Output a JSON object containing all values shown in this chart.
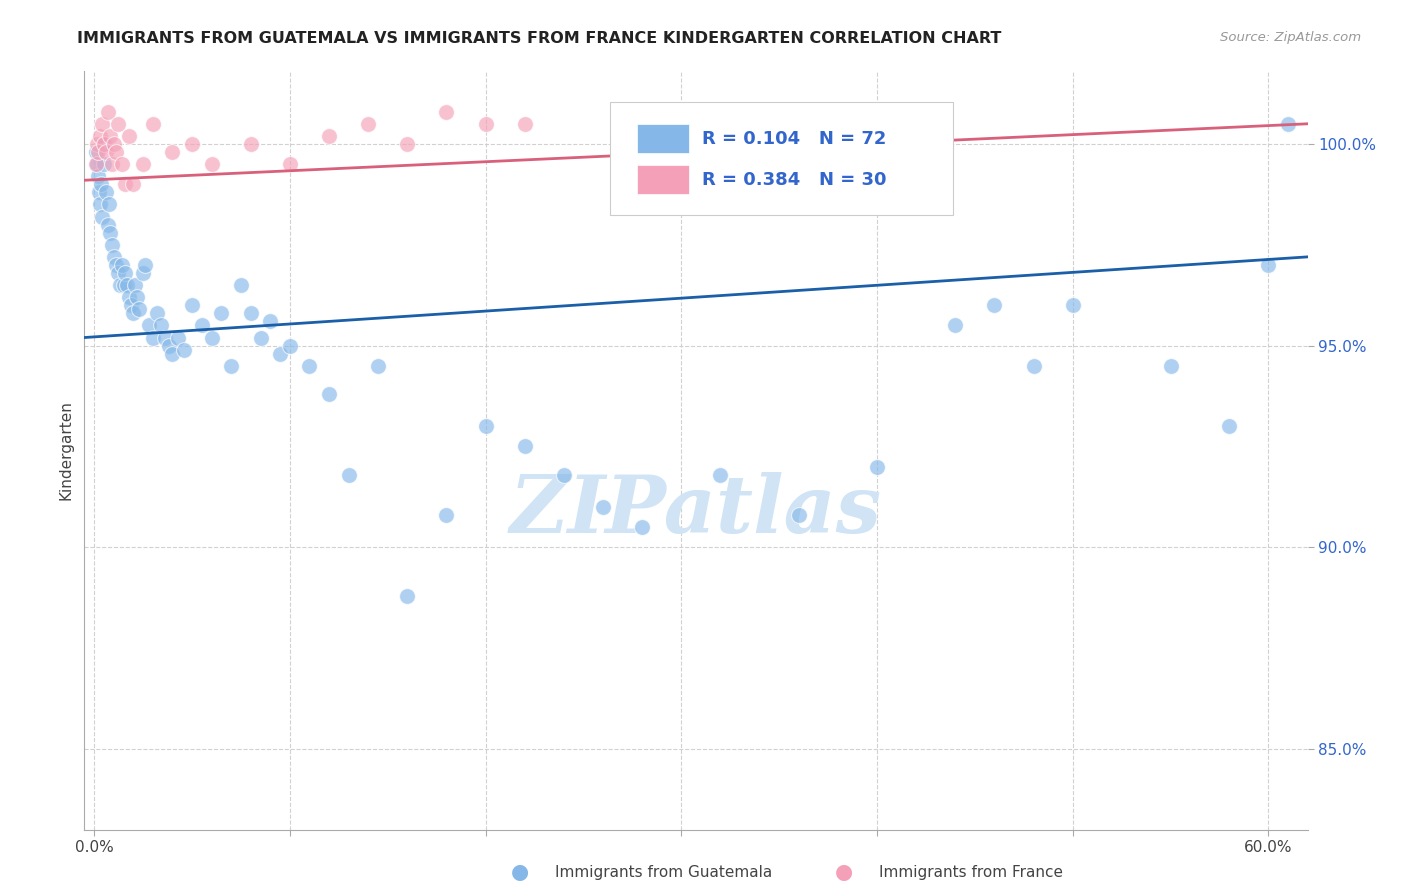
{
  "title": "IMMIGRANTS FROM GUATEMALA VS IMMIGRANTS FROM FRANCE KINDERGARTEN CORRELATION CHART",
  "source": "Source: ZipAtlas.com",
  "ylabel": "Kindergarten",
  "x_tick_labels_shown": [
    "0.0%",
    "60.0%"
  ],
  "x_ticks_minor": [
    10.0,
    20.0,
    30.0,
    40.0,
    50.0
  ],
  "xlim": [
    -0.5,
    62.0
  ],
  "ylim": [
    83.0,
    101.8
  ],
  "y_ticks": [
    85.0,
    90.0,
    95.0,
    100.0
  ],
  "y_tick_labels": [
    "85.0%",
    "90.0%",
    "95.0%",
    "100.0%"
  ],
  "r_guatemala": 0.104,
  "n_guatemala": 72,
  "r_france": 0.384,
  "n_france": 30,
  "legend1_label": "Immigrants from Guatemala",
  "legend2_label": "Immigrants from France",
  "blue_color": "#85B8E8",
  "pink_color": "#F4A0B8",
  "blue_line_color": "#1A5FA8",
  "pink_line_color": "#D9607A",
  "legend_text_color": "#3366CC",
  "watermark_color": "#D0E4F5",
  "watermark": "ZIPatlas",
  "blue_line_y0": 95.2,
  "blue_line_y1": 97.2,
  "pink_line_y0": 99.1,
  "pink_line_y1": 100.5,
  "guat_x": [
    0.1,
    0.15,
    0.2,
    0.25,
    0.3,
    0.35,
    0.4,
    0.5,
    0.55,
    0.6,
    0.7,
    0.75,
    0.8,
    0.9,
    1.0,
    1.1,
    1.2,
    1.3,
    1.4,
    1.5,
    1.6,
    1.7,
    1.8,
    1.9,
    2.0,
    2.1,
    2.2,
    2.3,
    2.5,
    2.6,
    2.8,
    3.0,
    3.2,
    3.4,
    3.6,
    3.8,
    4.0,
    4.3,
    4.6,
    5.0,
    5.5,
    6.0,
    6.5,
    7.0,
    7.5,
    8.0,
    8.5,
    9.0,
    9.5,
    10.0,
    11.0,
    12.0,
    13.0,
    14.5,
    16.0,
    18.0,
    20.0,
    22.0,
    24.0,
    26.0,
    28.0,
    32.0,
    36.0,
    40.0,
    44.0,
    46.0,
    48.0,
    50.0,
    55.0,
    58.0,
    60.0,
    61.0
  ],
  "guat_y": [
    99.8,
    99.5,
    99.2,
    98.8,
    98.5,
    99.0,
    98.2,
    99.5,
    100.0,
    98.8,
    98.0,
    98.5,
    97.8,
    97.5,
    97.2,
    97.0,
    96.8,
    96.5,
    97.0,
    96.5,
    96.8,
    96.5,
    96.2,
    96.0,
    95.8,
    96.5,
    96.2,
    95.9,
    96.8,
    97.0,
    95.5,
    95.2,
    95.8,
    95.5,
    95.2,
    95.0,
    94.8,
    95.2,
    94.9,
    96.0,
    95.5,
    95.2,
    95.8,
    94.5,
    96.5,
    95.8,
    95.2,
    95.6,
    94.8,
    95.0,
    94.5,
    93.8,
    91.8,
    94.5,
    88.8,
    90.8,
    93.0,
    92.5,
    91.8,
    91.0,
    90.5,
    91.8,
    90.8,
    92.0,
    95.5,
    96.0,
    94.5,
    96.0,
    94.5,
    93.0,
    97.0,
    100.5
  ],
  "france_x": [
    0.1,
    0.15,
    0.2,
    0.3,
    0.4,
    0.5,
    0.6,
    0.7,
    0.8,
    0.9,
    1.0,
    1.1,
    1.2,
    1.4,
    1.6,
    1.8,
    2.0,
    2.5,
    3.0,
    4.0,
    5.0,
    6.0,
    8.0,
    10.0,
    12.0,
    14.0,
    16.0,
    18.0,
    20.0,
    22.0
  ],
  "france_y": [
    99.5,
    100.0,
    99.8,
    100.2,
    100.5,
    100.0,
    99.8,
    100.8,
    100.2,
    99.5,
    100.0,
    99.8,
    100.5,
    99.5,
    99.0,
    100.2,
    99.0,
    99.5,
    100.5,
    99.8,
    100.0,
    99.5,
    100.0,
    99.5,
    100.2,
    100.5,
    100.0,
    100.8,
    100.5,
    100.5
  ]
}
